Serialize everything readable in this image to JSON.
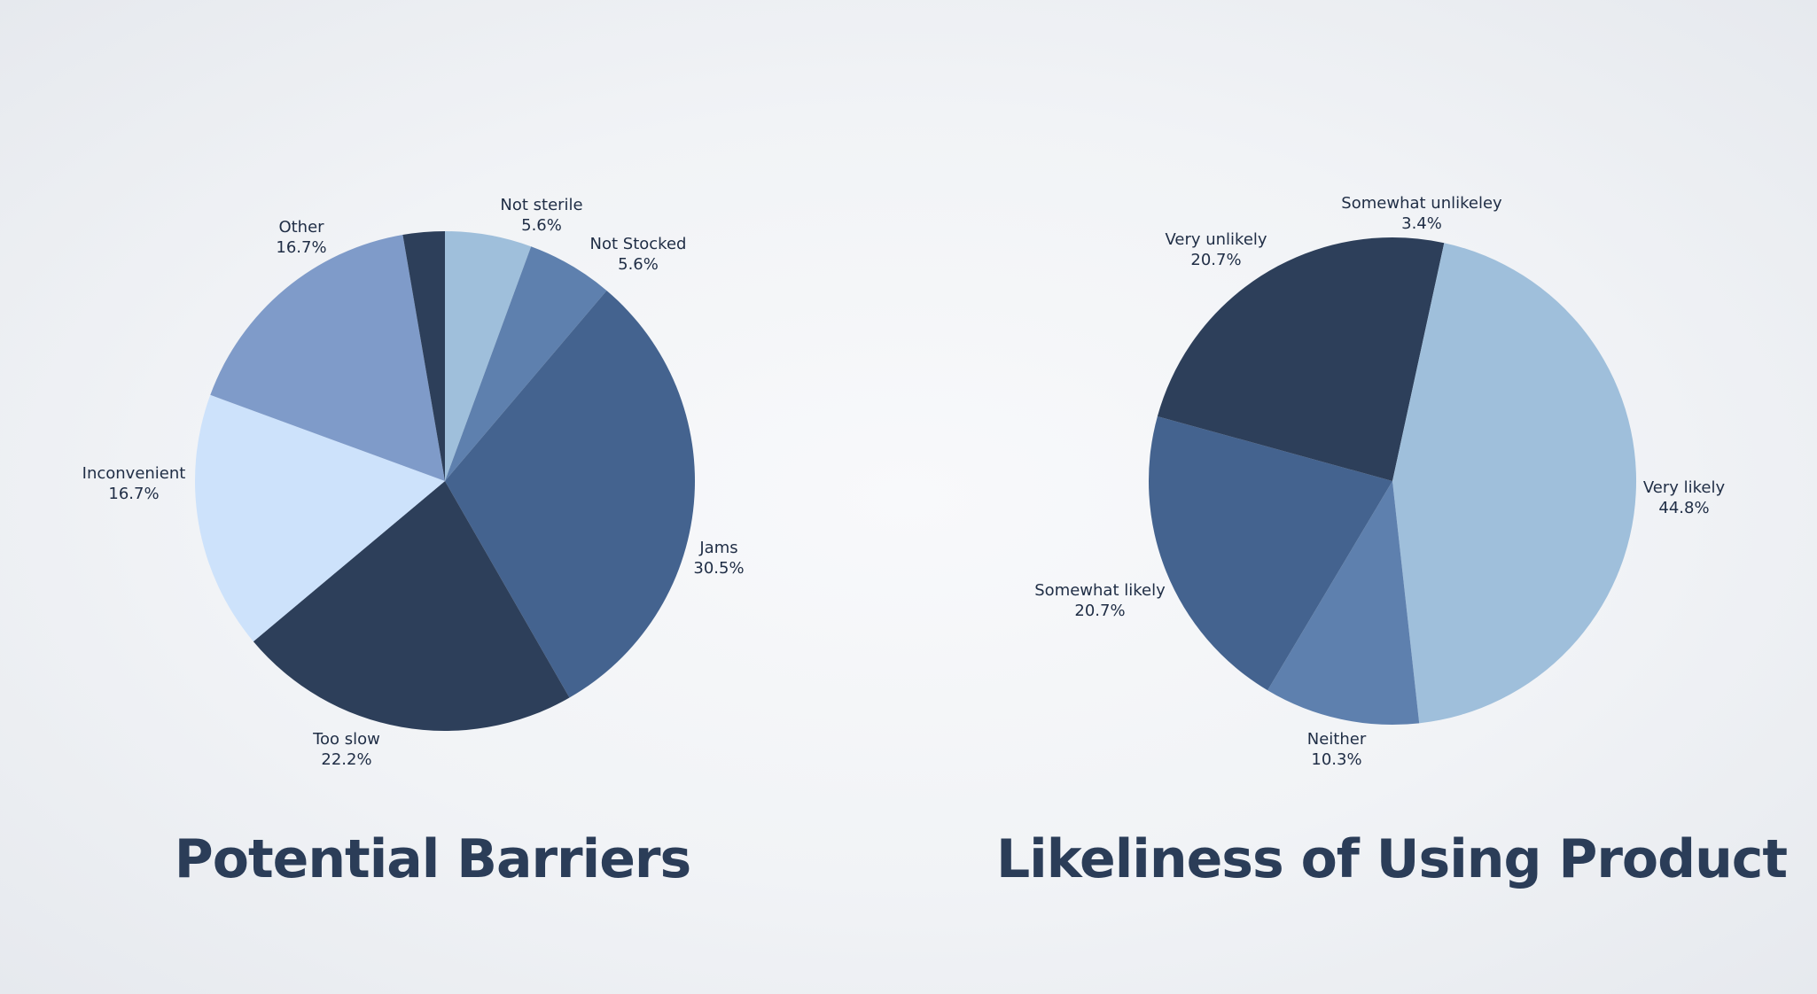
{
  "chart_data": [
    {
      "type": "pie",
      "title": "Potential Barriers",
      "slices": [
        {
          "label": "Not sterile",
          "value_label": "5.6%",
          "value": 5.6,
          "color": "#9fbfdb"
        },
        {
          "label": "Not Stocked",
          "value_label": "5.6%",
          "value": 5.6,
          "color": "#5e80ae"
        },
        {
          "label": "Jams",
          "value_label": "30.5%",
          "value": 30.5,
          "color": "#44638f"
        },
        {
          "label": "Too slow",
          "value_label": "22.2%",
          "value": 22.2,
          "color": "#2d3f5a"
        },
        {
          "label": "Inconvenient",
          "value_label": "16.7%",
          "value": 16.7,
          "color": "#cde2fb"
        },
        {
          "label": "Other",
          "value_label": "16.7%",
          "value": 16.7,
          "color": "#7f9bc9"
        },
        {
          "label": "",
          "value_label": "",
          "value": 2.7,
          "color": "#2d3f5a"
        }
      ]
    },
    {
      "type": "pie",
      "title": "Likeliness of Using Product",
      "slices": [
        {
          "label": "Somewhat unlikeley",
          "value_label": "3.4%",
          "value": 3.4,
          "color": "#2d3f5a"
        },
        {
          "label": "Very likely",
          "value_label": "44.8%",
          "value": 44.8,
          "color": "#9fbfdb"
        },
        {
          "label": "Neither",
          "value_label": "10.3%",
          "value": 10.3,
          "color": "#5e80ae"
        },
        {
          "label": "Somewhat likely",
          "value_label": "20.7%",
          "value": 20.7,
          "color": "#44638f"
        },
        {
          "label": "Very unlikely",
          "value_label": "20.7%",
          "value": 20.7,
          "color": "#2d3f5a"
        }
      ]
    }
  ]
}
